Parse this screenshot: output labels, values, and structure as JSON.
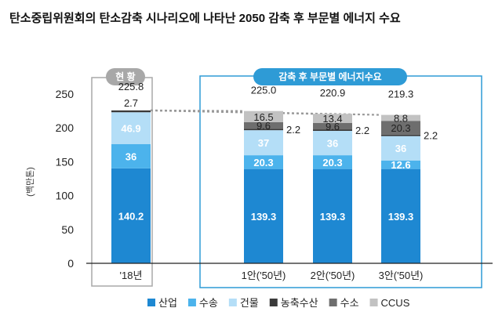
{
  "chart_data": {
    "type": "bar",
    "stacked": true,
    "title": "탄소중립위원회의 탄소감축 시나리오에 나타난 2050 감축 후 부문별 에너지 수요",
    "ylabel": "(백만톤)",
    "ylim": [
      0,
      250
    ],
    "yticks": [
      "0",
      "50",
      "100",
      "150",
      "200",
      "250"
    ],
    "categories": [
      "'18년",
      "1안('50년)",
      "2안('50년)",
      "3안('50년)"
    ],
    "group_labels": {
      "current": "현 황",
      "future": "감축 후 부문별 에너지수요"
    },
    "series": [
      {
        "name": "산업",
        "color": "#1e88d2",
        "values": [
          140.2,
          139.3,
          139.3,
          139.3
        ]
      },
      {
        "name": "수송",
        "color": "#4cb3ec",
        "values": [
          36,
          20.3,
          20.3,
          12.6
        ]
      },
      {
        "name": "건물",
        "color": "#b4def7",
        "values": [
          46.9,
          37,
          36,
          36
        ]
      },
      {
        "name": "농축수산",
        "color": "#3a3a3a",
        "values": [
          2.7,
          2.2,
          2.2,
          2.2
        ]
      },
      {
        "name": "수소",
        "color": "#6e6e6e",
        "values": [
          0,
          9.6,
          9.6,
          20.3
        ]
      },
      {
        "name": "CCUS",
        "color": "#c2c2c2",
        "values": [
          0,
          16.5,
          13.4,
          8.8
        ]
      }
    ],
    "segment_labels": [
      [
        "140.2",
        "36",
        "46.9",
        "2.7",
        "",
        ""
      ],
      [
        "139.3",
        "20.3",
        "37",
        "2.2",
        "9.6",
        "16.5"
      ],
      [
        "139.3",
        "20.3",
        "36",
        "2.2",
        "9.6",
        "13.4"
      ],
      [
        "139.3",
        "12.6",
        "36",
        "2.2",
        "20.3",
        "8.8"
      ]
    ],
    "totals": [
      "225.8",
      "225.0",
      "220.9",
      "219.3"
    ]
  }
}
